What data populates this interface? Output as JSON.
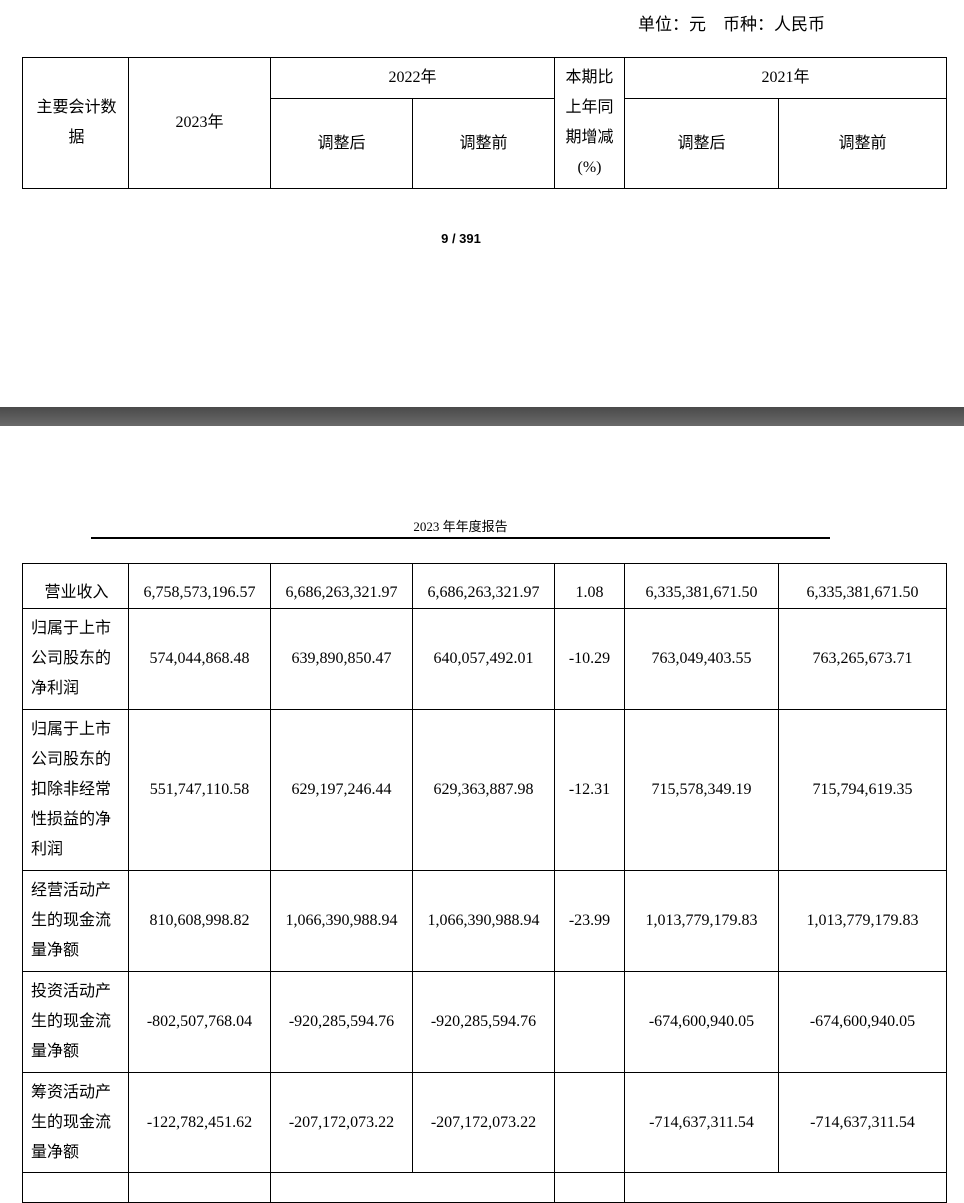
{
  "page1": {
    "unit_line": "单位：元　币种：人民币",
    "header": {
      "col_label": "主要会计数据",
      "col_2023": "2023年",
      "col_2022": "2022年",
      "col_change": "本期比上年同期增减(%)",
      "col_2021": "2021年",
      "adjusted_after": "调整后",
      "adjusted_before": "调整前"
    },
    "page_number": "9 / 391"
  },
  "page2": {
    "running_header": "2023 年年度报告",
    "rows": [
      {
        "label": "营业收入",
        "v2023": "6,758,573,196.57",
        "v2022a": "6,686,263,321.97",
        "v2022b": "6,686,263,321.97",
        "chg": "1.08",
        "v2021a": "6,335,381,671.50",
        "v2021b": "6,335,381,671.50"
      },
      {
        "label": "归属于上市公司股东的净利润",
        "v2023": "574,044,868.48",
        "v2022a": "639,890,850.47",
        "v2022b": "640,057,492.01",
        "chg": "-10.29",
        "v2021a": "763,049,403.55",
        "v2021b": "763,265,673.71"
      },
      {
        "label": "归属于上市公司股东的扣除非经常性损益的净利润",
        "v2023": "551,747,110.58",
        "v2022a": "629,197,246.44",
        "v2022b": "629,363,887.98",
        "chg": "-12.31",
        "v2021a": "715,578,349.19",
        "v2021b": "715,794,619.35"
      },
      {
        "label": "经营活动产生的现金流量净额",
        "v2023": "810,608,998.82",
        "v2022a": "1,066,390,988.94",
        "v2022b": "1,066,390,988.94",
        "chg": "-23.99",
        "v2021a": "1,013,779,179.83",
        "v2021b": "1,013,779,179.83"
      },
      {
        "label": "投资活动产生的现金流量净额",
        "v2023": "-802,507,768.04",
        "v2022a": "-920,285,594.76",
        "v2022b": "-920,285,594.76",
        "chg": "",
        "v2021a": "-674,600,940.05",
        "v2021b": "-674,600,940.05"
      },
      {
        "label": "筹资活动产生的现金流量净额",
        "v2023": "-122,782,451.62",
        "v2022a": "-207,172,073.22",
        "v2022b": "-207,172,073.22",
        "chg": "",
        "v2021a": "-714,637,311.54",
        "v2021b": "-714,637,311.54"
      }
    ]
  }
}
